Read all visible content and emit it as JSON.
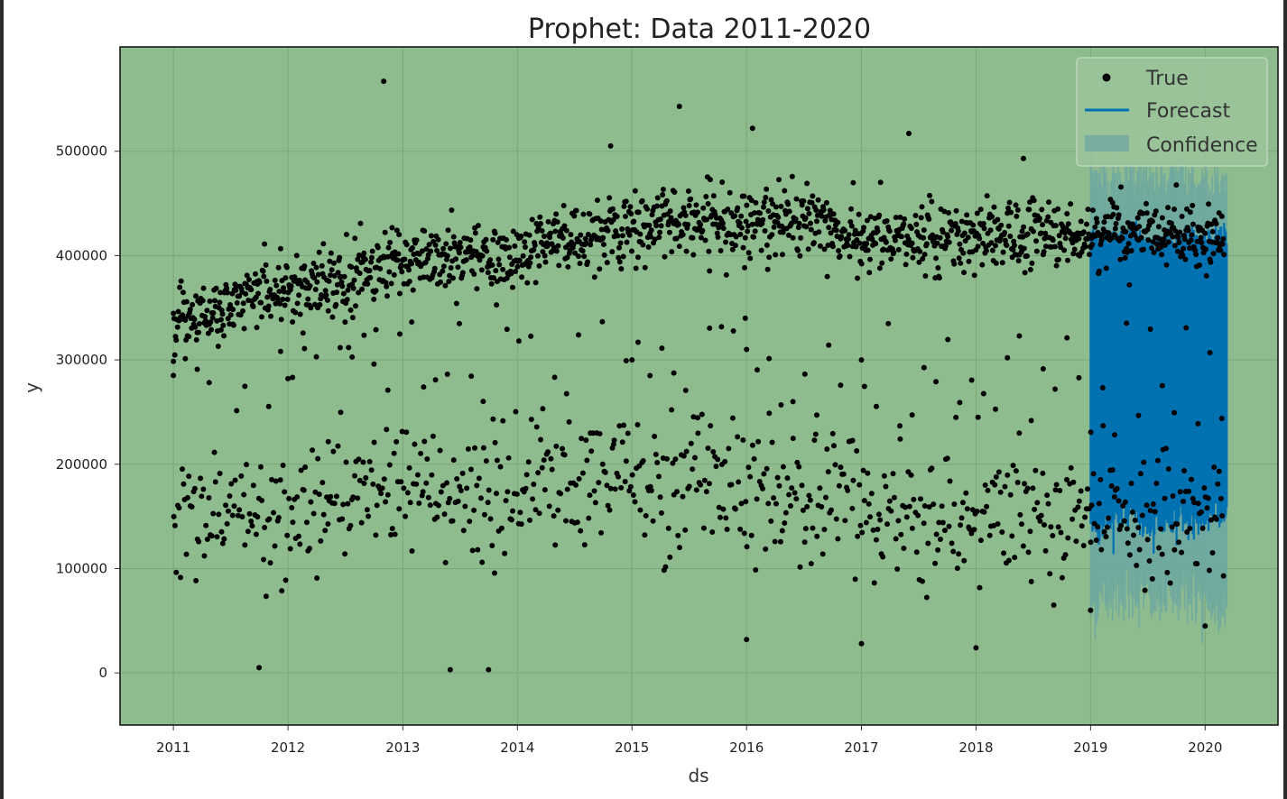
{
  "chart_data": {
    "type": "scatter",
    "title": "Prophet: Data 2011-2020",
    "xlabel": "ds",
    "ylabel": "y",
    "x_range": [
      "2010-07-15",
      "2020-08-20"
    ],
    "ylim": [
      -50000,
      600000
    ],
    "x_tick_labels": [
      "2011",
      "2012",
      "2013",
      "2014",
      "2015",
      "2016",
      "2017",
      "2018",
      "2019",
      "2020"
    ],
    "y_tick_labels": [
      "0",
      "100000",
      "200000",
      "300000",
      "400000",
      "500000"
    ],
    "y_ticks": [
      0,
      100000,
      200000,
      300000,
      400000,
      500000
    ],
    "grid": true,
    "legend_position": "top-right",
    "colors": {
      "background": "#8fbc8f",
      "true_points": "#000000",
      "forecast": "#0072b2",
      "confidence": "#6fa8a0"
    },
    "legend": [
      {
        "label": "True",
        "kind": "marker"
      },
      {
        "label": "Forecast",
        "kind": "line"
      },
      {
        "label": "Confidence",
        "kind": "band"
      }
    ],
    "true_series": {
      "name": "True",
      "description_points": {
        "upper_cluster": [
          [
            "2011-01-01",
            330000
          ],
          [
            "2011-07-01",
            350000
          ],
          [
            "2012-01-01",
            370000
          ],
          [
            "2012-07-01",
            375000
          ],
          [
            "2013-01-01",
            395000
          ],
          [
            "2013-07-01",
            400000
          ],
          [
            "2014-01-01",
            400000
          ],
          [
            "2014-07-01",
            415000
          ],
          [
            "2015-01-01",
            425000
          ],
          [
            "2015-07-01",
            435000
          ],
          [
            "2016-01-01",
            430000
          ],
          [
            "2016-07-01",
            435000
          ],
          [
            "2017-01-01",
            415000
          ],
          [
            "2017-07-01",
            420000
          ],
          [
            "2018-01-01",
            415000
          ],
          [
            "2018-07-01",
            420000
          ],
          [
            "2019-01-01",
            420000
          ],
          [
            "2019-07-01",
            420000
          ],
          [
            "2020-01-01",
            415000
          ],
          [
            "2020-03-01",
            418000
          ]
        ],
        "lower_cluster": [
          [
            "2011-01-01",
            150000
          ],
          [
            "2011-07-01",
            155000
          ],
          [
            "2012-01-01",
            160000
          ],
          [
            "2012-07-01",
            165000
          ],
          [
            "2013-01-01",
            170000
          ],
          [
            "2013-07-01",
            175000
          ],
          [
            "2014-01-01",
            175000
          ],
          [
            "2014-07-01",
            185000
          ],
          [
            "2015-01-01",
            185000
          ],
          [
            "2015-07-01",
            180000
          ],
          [
            "2016-01-01",
            170000
          ],
          [
            "2016-07-01",
            170000
          ],
          [
            "2017-01-01",
            160000
          ],
          [
            "2017-07-01",
            155000
          ],
          [
            "2018-01-01",
            150000
          ],
          [
            "2018-07-01",
            150000
          ],
          [
            "2019-01-01",
            150000
          ],
          [
            "2019-07-01",
            150000
          ],
          [
            "2020-01-01",
            150000
          ],
          [
            "2020-03-01",
            150000
          ]
        ],
        "outliers": [
          [
            "2012-11-01",
            567000
          ],
          [
            "2015-06-01",
            543000
          ],
          [
            "2016-01-20",
            522000
          ],
          [
            "2017-06-01",
            517000
          ],
          [
            "2014-10-25",
            505000
          ],
          [
            "2018-06-01",
            493000
          ],
          [
            "2011-10-01",
            5000
          ],
          [
            "2013-06-01",
            3000
          ],
          [
            "2013-10-01",
            3000
          ],
          [
            "2016-01-01",
            32000
          ],
          [
            "2017-01-01",
            28000
          ],
          [
            "2018-01-01",
            24000
          ],
          [
            "2011-01-01",
            285000
          ],
          [
            "2012-01-01",
            282000
          ],
          [
            "2012-10-01",
            296000
          ],
          [
            "2015-01-01",
            300000
          ],
          [
            "2016-01-01",
            310000
          ],
          [
            "2017-01-01",
            300000
          ],
          [
            "2019-01-01",
            60000
          ],
          [
            "2020-01-01",
            45000
          ]
        ]
      }
    },
    "forecast_series": {
      "name": "Forecast",
      "x_start": "2019-01-01",
      "x_end": "2020-03-10",
      "low": [
        145000,
        140000,
        150000,
        155000,
        130000,
        145000,
        150000,
        140000,
        155000,
        150000
      ],
      "high": [
        420000,
        415000,
        418000,
        420000,
        410000,
        415000,
        420000,
        415000,
        418000,
        420000
      ]
    },
    "confidence_series": {
      "name": "Confidence",
      "x_start": "2019-01-01",
      "x_end": "2020-03-10",
      "low": [
        60000,
        70000,
        80000,
        75000,
        70000,
        65000,
        80000,
        70000,
        50000,
        60000
      ],
      "high": [
        480000,
        475000,
        470000,
        478000,
        470000,
        472000,
        480000,
        470000,
        470000,
        475000
      ]
    }
  }
}
